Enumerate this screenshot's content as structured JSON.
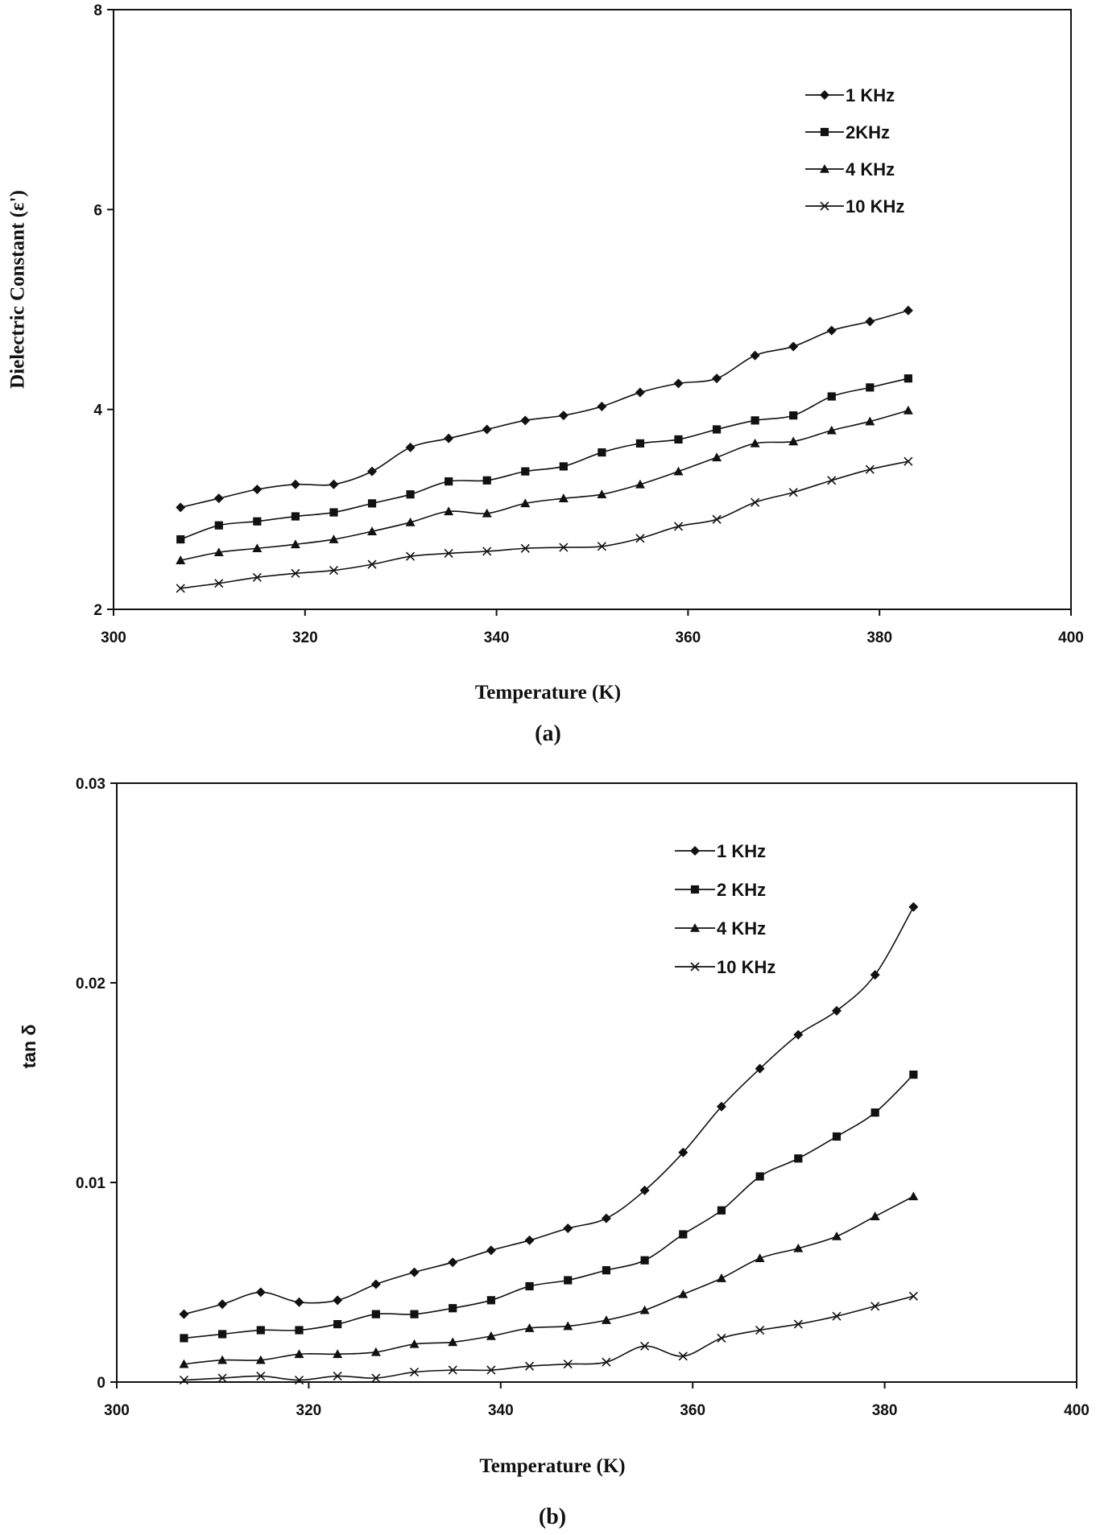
{
  "chart_data": [
    {
      "type": "line",
      "panel_label": "(a)",
      "title": "",
      "xlabel": "Temperature (K)",
      "ylabel": "Dielectric Constant (ε')",
      "xlim": [
        300,
        400
      ],
      "ylim": [
        2,
        8
      ],
      "x_ticks": [
        "300",
        "320",
        "340",
        "360",
        "380",
        "400"
      ],
      "y_ticks": [
        "2",
        "4",
        "6",
        "8"
      ],
      "grid": false,
      "legend_position": "top-right",
      "x": [
        307,
        311,
        315,
        319,
        323,
        327,
        331,
        335,
        339,
        343,
        347,
        351,
        355,
        359,
        363,
        367,
        371,
        375,
        379,
        383
      ],
      "series": [
        {
          "name": "1 KHz",
          "marker": "diamond",
          "values": [
            3.02,
            3.11,
            3.2,
            3.25,
            3.25,
            3.38,
            3.62,
            3.71,
            3.8,
            3.89,
            3.94,
            4.03,
            4.17,
            4.26,
            4.31,
            4.54,
            4.63,
            4.79,
            4.88,
            4.99
          ]
        },
        {
          "name": "2KHz",
          "marker": "square",
          "values": [
            2.7,
            2.84,
            2.88,
            2.93,
            2.97,
            3.06,
            3.15,
            3.28,
            3.29,
            3.38,
            3.43,
            3.57,
            3.66,
            3.7,
            3.8,
            3.89,
            3.94,
            4.13,
            4.22,
            4.31
          ]
        },
        {
          "name": "4 KHz",
          "marker": "triangle",
          "values": [
            2.49,
            2.57,
            2.61,
            2.65,
            2.7,
            2.78,
            2.87,
            2.98,
            2.96,
            3.06,
            3.11,
            3.15,
            3.25,
            3.38,
            3.52,
            3.66,
            3.68,
            3.79,
            3.88,
            3.99
          ]
        },
        {
          "name": "10 KHz",
          "marker": "x",
          "values": [
            2.21,
            2.26,
            2.32,
            2.36,
            2.39,
            2.45,
            2.53,
            2.56,
            2.58,
            2.61,
            2.62,
            2.63,
            2.71,
            2.83,
            2.9,
            3.07,
            3.17,
            3.29,
            3.4,
            3.48
          ]
        }
      ]
    },
    {
      "type": "line",
      "panel_label": "(b)",
      "title": "",
      "xlabel": "Temperature (K)",
      "ylabel": "tan δ",
      "xlim": [
        300,
        400
      ],
      "ylim": [
        0,
        0.03
      ],
      "x_ticks": [
        "300",
        "320",
        "340",
        "360",
        "380",
        "400"
      ],
      "y_ticks": [
        "0",
        "0.01",
        "0.02",
        "0.03"
      ],
      "grid": false,
      "legend_position": "top-right",
      "x": [
        307,
        311,
        315,
        319,
        323,
        327,
        331,
        335,
        339,
        343,
        347,
        351,
        355,
        359,
        363,
        367,
        371,
        375,
        379,
        383
      ],
      "series": [
        {
          "name": "1 KHz",
          "marker": "diamond",
          "values": [
            0.0034,
            0.0039,
            0.0045,
            0.004,
            0.0041,
            0.0049,
            0.0055,
            0.006,
            0.0066,
            0.0071,
            0.0077,
            0.0082,
            0.0096,
            0.0115,
            0.0138,
            0.0157,
            0.0174,
            0.0186,
            0.0204,
            0.0238
          ]
        },
        {
          "name": "2 KHz",
          "marker": "square",
          "values": [
            0.0022,
            0.0024,
            0.0026,
            0.0026,
            0.0029,
            0.0034,
            0.0034,
            0.0037,
            0.0041,
            0.0048,
            0.0051,
            0.0056,
            0.0061,
            0.0074,
            0.0086,
            0.0103,
            0.0112,
            0.0123,
            0.0135,
            0.0154
          ]
        },
        {
          "name": "4 KHz",
          "marker": "triangle",
          "values": [
            0.0009,
            0.0011,
            0.0011,
            0.0014,
            0.0014,
            0.0015,
            0.0019,
            0.002,
            0.0023,
            0.0027,
            0.0028,
            0.0031,
            0.0036,
            0.0044,
            0.0052,
            0.0062,
            0.0067,
            0.0073,
            0.0083,
            0.0093
          ]
        },
        {
          "name": "10 KHz",
          "marker": "x",
          "values": [
            0.0001,
            0.0002,
            0.0003,
            0.0001,
            0.0003,
            0.0002,
            0.0005,
            0.0006,
            0.0006,
            0.0008,
            0.0009,
            0.001,
            0.0018,
            0.0013,
            0.0022,
            0.0026,
            0.0029,
            0.0033,
            0.0038,
            0.0043
          ]
        }
      ]
    }
  ]
}
